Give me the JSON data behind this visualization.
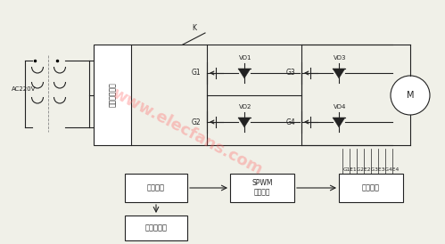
{
  "bg_color": "#f0f0e8",
  "line_color": "#222222",
  "watermark_color": "#ff6666",
  "watermark_text": "www.elecfans.com",
  "watermark_alpha": 0.35,
  "ac_label": "AC220V",
  "box_label": "三相不控整流",
  "switch_label": "K",
  "g1_label": "G1",
  "g2_label": "G2",
  "g3_label": "G3",
  "g4_label": "G4",
  "vd1_label": "VD1",
  "vd2_label": "VD2",
  "vd3_label": "VD3",
  "vd4_label": "VD4",
  "m_label": "M",
  "micro_label": "微处理器",
  "spwm_label": "SPWM\n生成电路",
  "drive_label": "驱动电路",
  "display_label": "显示与键盘",
  "signal_label": "G1E1G2E2G3E3G4E4"
}
